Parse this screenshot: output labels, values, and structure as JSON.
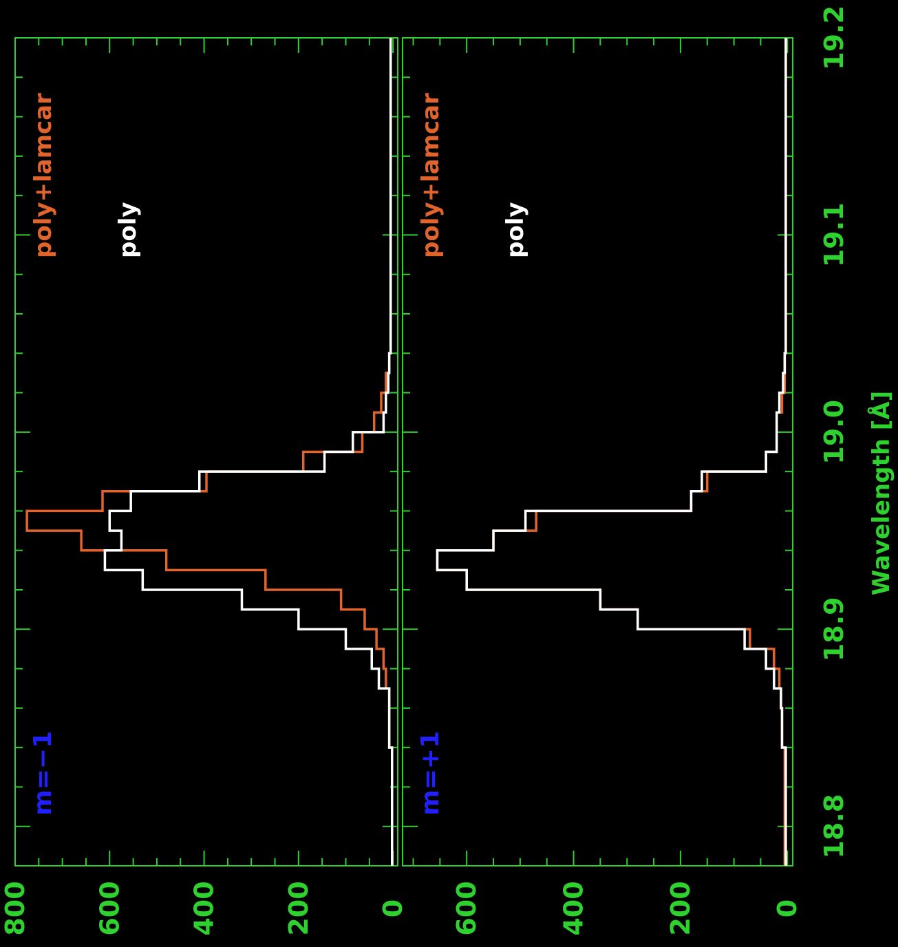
{
  "colors": {
    "background": "#000000",
    "axis": "#2fd12f",
    "axis_text": "#2fd12f",
    "series_poly_lamcor": "#e0642c",
    "series_poly": "#ffffff",
    "order_label": "#2020ff"
  },
  "xaxis": {
    "label": "Wavelength [Å]",
    "ticks": [
      "18.8",
      "18.9",
      "19.0",
      "19.1",
      "19.2"
    ]
  },
  "chart_data": [
    {
      "type": "line",
      "step": true,
      "order_label": "m=−1",
      "x_range": [
        18.78,
        19.2
      ],
      "y_range": [
        -10,
        800
      ],
      "y_ticks": [
        "0",
        "200",
        "400",
        "600",
        "800"
      ],
      "bin_edges": [
        18.78,
        18.84,
        18.86,
        18.87,
        18.88,
        18.89,
        18.9,
        18.91,
        18.92,
        18.93,
        18.94,
        18.95,
        18.96,
        18.97,
        18.98,
        18.99,
        19.0,
        19.01,
        19.02,
        19.03,
        19.04,
        19.05,
        19.06,
        19.07,
        19.08,
        19.2
      ],
      "legend": [
        {
          "name": "poly+lamcar",
          "color_key": "series_poly_lamcor"
        },
        {
          "name": "poly",
          "color_key": "series_poly"
        }
      ],
      "series": [
        {
          "name": "poly+lamcar",
          "color_key": "series_poly_lamcor",
          "values": [
            2,
            8,
            8,
            15,
            20,
            35,
            60,
            110,
            270,
            480,
            660,
            775,
            615,
            395,
            190,
            65,
            40,
            25,
            15,
            8,
            5,
            5,
            5,
            5,
            5
          ]
        },
        {
          "name": "poly",
          "color_key": "series_poly",
          "values": [
            2,
            8,
            8,
            30,
            45,
            100,
            200,
            320,
            530,
            610,
            575,
            600,
            555,
            410,
            145,
            85,
            20,
            15,
            10,
            8,
            5,
            5,
            5,
            5,
            5
          ]
        }
      ]
    },
    {
      "type": "line",
      "step": true,
      "order_label": "m=+1",
      "x_range": [
        18.78,
        19.2
      ],
      "y_range": [
        -10,
        720
      ],
      "y_ticks": [
        "0",
        "200",
        "400",
        "600"
      ],
      "bin_edges": [
        18.78,
        18.84,
        18.86,
        18.87,
        18.88,
        18.89,
        18.9,
        18.91,
        18.92,
        18.93,
        18.94,
        18.95,
        18.96,
        18.97,
        18.98,
        18.99,
        19.0,
        19.01,
        19.02,
        19.03,
        19.04,
        19.05,
        19.06,
        19.07,
        19.08,
        19.2
      ],
      "legend": [
        {
          "name": "poly+lamcar",
          "color_key": "series_poly_lamcor"
        },
        {
          "name": "poly",
          "color_key": "series_poly"
        }
      ],
      "series": [
        {
          "name": "poly+lamcar",
          "color_key": "series_poly_lamcor",
          "values": [
            5,
            10,
            12,
            15,
            25,
            70,
            280,
            350,
            600,
            655,
            550,
            470,
            180,
            150,
            40,
            20,
            20,
            10,
            5,
            5,
            3,
            3,
            3,
            3,
            3
          ]
        },
        {
          "name": "poly",
          "color_key": "series_poly",
          "values": [
            3,
            10,
            12,
            25,
            40,
            80,
            280,
            350,
            600,
            655,
            550,
            490,
            180,
            160,
            40,
            20,
            20,
            15,
            8,
            5,
            3,
            3,
            3,
            3,
            3
          ]
        }
      ]
    }
  ]
}
